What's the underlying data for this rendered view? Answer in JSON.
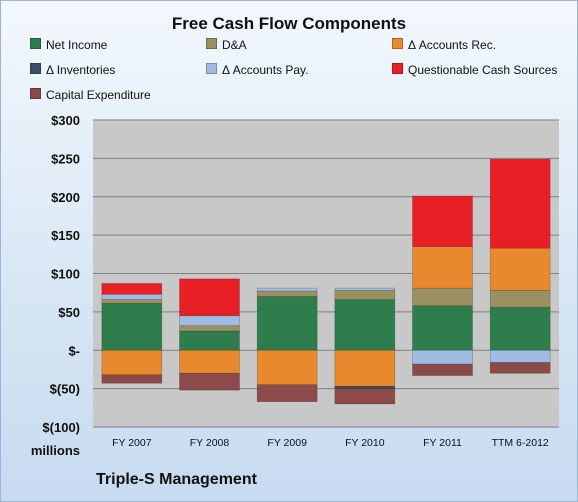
{
  "chart_data": {
    "type": "bar",
    "stacked": true,
    "title": "Free Cash Flow Components",
    "ylabel": "millions",
    "ylim": [
      -100,
      300
    ],
    "yticks": [
      "$300",
      "$250",
      "$200",
      "$150",
      "$100",
      "$50",
      "$-",
      "$(50)",
      "$(100)"
    ],
    "ytick_values": [
      300,
      250,
      200,
      150,
      100,
      50,
      0,
      -50,
      -100
    ],
    "grid": true,
    "legend_position": "top",
    "categories": [
      "FY 2007",
      "FY 2008",
      "FY 2009",
      "FY 2010",
      "FY 2011",
      "TTM 6-2012"
    ],
    "series": [
      {
        "name": "Net Income",
        "color": "#2e7d4c",
        "values": [
          61,
          25,
          70,
          66,
          58,
          56
        ]
      },
      {
        "name": "D&A",
        "color": "#9b9060",
        "values": [
          5,
          7,
          7,
          12,
          23,
          22
        ]
      },
      {
        "name": "Δ Accounts Rec.",
        "color": "#e8892e",
        "values": [
          -32,
          -30,
          -45,
          -47,
          54,
          55
        ]
      },
      {
        "name": "Δ Inventories",
        "color": "#3a4f63",
        "values": [
          0,
          0,
          0,
          -3,
          0,
          0
        ]
      },
      {
        "name": "Δ Accounts Pay.",
        "color": "#9fbbe2",
        "values": [
          7,
          13,
          4,
          3,
          -18,
          -16
        ]
      },
      {
        "name": "Questionable Cash Sources",
        "color": "#e82025",
        "values": [
          14,
          48,
          0,
          0,
          66,
          116
        ]
      },
      {
        "name": "Capital Expenditure",
        "color": "#8c4a4a",
        "values": [
          -11,
          -22,
          -22,
          -20,
          -15,
          -14
        ]
      }
    ],
    "company": "Triple-S Management"
  }
}
